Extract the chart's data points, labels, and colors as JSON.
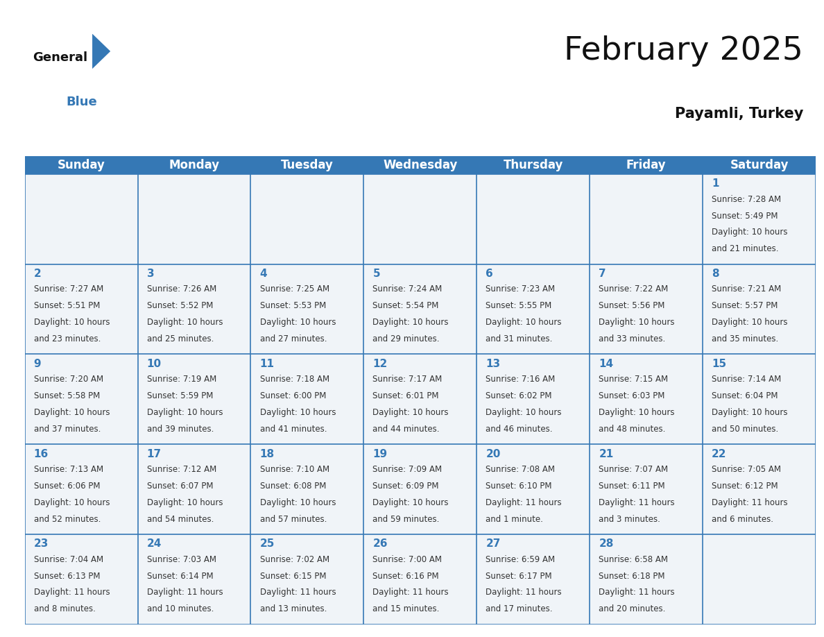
{
  "title": "February 2025",
  "subtitle": "Payamli, Turkey",
  "header_bg": "#3578b5",
  "header_text": "#ffffff",
  "cell_bg": "#f0f4f8",
  "border_color": "#3578b5",
  "day_headers": [
    "Sunday",
    "Monday",
    "Tuesday",
    "Wednesday",
    "Thursday",
    "Friday",
    "Saturday"
  ],
  "days": [
    {
      "day": 1,
      "col": 6,
      "row": 0,
      "sunrise": "7:28 AM",
      "sunset": "5:49 PM",
      "daylight_h": "10 hours",
      "daylight_m": "21 minutes"
    },
    {
      "day": 2,
      "col": 0,
      "row": 1,
      "sunrise": "7:27 AM",
      "sunset": "5:51 PM",
      "daylight_h": "10 hours",
      "daylight_m": "23 minutes"
    },
    {
      "day": 3,
      "col": 1,
      "row": 1,
      "sunrise": "7:26 AM",
      "sunset": "5:52 PM",
      "daylight_h": "10 hours",
      "daylight_m": "25 minutes"
    },
    {
      "day": 4,
      "col": 2,
      "row": 1,
      "sunrise": "7:25 AM",
      "sunset": "5:53 PM",
      "daylight_h": "10 hours",
      "daylight_m": "27 minutes"
    },
    {
      "day": 5,
      "col": 3,
      "row": 1,
      "sunrise": "7:24 AM",
      "sunset": "5:54 PM",
      "daylight_h": "10 hours",
      "daylight_m": "29 minutes"
    },
    {
      "day": 6,
      "col": 4,
      "row": 1,
      "sunrise": "7:23 AM",
      "sunset": "5:55 PM",
      "daylight_h": "10 hours",
      "daylight_m": "31 minutes"
    },
    {
      "day": 7,
      "col": 5,
      "row": 1,
      "sunrise": "7:22 AM",
      "sunset": "5:56 PM",
      "daylight_h": "10 hours",
      "daylight_m": "33 minutes"
    },
    {
      "day": 8,
      "col": 6,
      "row": 1,
      "sunrise": "7:21 AM",
      "sunset": "5:57 PM",
      "daylight_h": "10 hours",
      "daylight_m": "35 minutes"
    },
    {
      "day": 9,
      "col": 0,
      "row": 2,
      "sunrise": "7:20 AM",
      "sunset": "5:58 PM",
      "daylight_h": "10 hours",
      "daylight_m": "37 minutes"
    },
    {
      "day": 10,
      "col": 1,
      "row": 2,
      "sunrise": "7:19 AM",
      "sunset": "5:59 PM",
      "daylight_h": "10 hours",
      "daylight_m": "39 minutes"
    },
    {
      "day": 11,
      "col": 2,
      "row": 2,
      "sunrise": "7:18 AM",
      "sunset": "6:00 PM",
      "daylight_h": "10 hours",
      "daylight_m": "41 minutes"
    },
    {
      "day": 12,
      "col": 3,
      "row": 2,
      "sunrise": "7:17 AM",
      "sunset": "6:01 PM",
      "daylight_h": "10 hours",
      "daylight_m": "44 minutes"
    },
    {
      "day": 13,
      "col": 4,
      "row": 2,
      "sunrise": "7:16 AM",
      "sunset": "6:02 PM",
      "daylight_h": "10 hours",
      "daylight_m": "46 minutes"
    },
    {
      "day": 14,
      "col": 5,
      "row": 2,
      "sunrise": "7:15 AM",
      "sunset": "6:03 PM",
      "daylight_h": "10 hours",
      "daylight_m": "48 minutes"
    },
    {
      "day": 15,
      "col": 6,
      "row": 2,
      "sunrise": "7:14 AM",
      "sunset": "6:04 PM",
      "daylight_h": "10 hours",
      "daylight_m": "50 minutes"
    },
    {
      "day": 16,
      "col": 0,
      "row": 3,
      "sunrise": "7:13 AM",
      "sunset": "6:06 PM",
      "daylight_h": "10 hours",
      "daylight_m": "52 minutes"
    },
    {
      "day": 17,
      "col": 1,
      "row": 3,
      "sunrise": "7:12 AM",
      "sunset": "6:07 PM",
      "daylight_h": "10 hours",
      "daylight_m": "54 minutes"
    },
    {
      "day": 18,
      "col": 2,
      "row": 3,
      "sunrise": "7:10 AM",
      "sunset": "6:08 PM",
      "daylight_h": "10 hours",
      "daylight_m": "57 minutes"
    },
    {
      "day": 19,
      "col": 3,
      "row": 3,
      "sunrise": "7:09 AM",
      "sunset": "6:09 PM",
      "daylight_h": "10 hours",
      "daylight_m": "59 minutes"
    },
    {
      "day": 20,
      "col": 4,
      "row": 3,
      "sunrise": "7:08 AM",
      "sunset": "6:10 PM",
      "daylight_h": "11 hours",
      "daylight_m": "1 minute"
    },
    {
      "day": 21,
      "col": 5,
      "row": 3,
      "sunrise": "7:07 AM",
      "sunset": "6:11 PM",
      "daylight_h": "11 hours",
      "daylight_m": "3 minutes"
    },
    {
      "day": 22,
      "col": 6,
      "row": 3,
      "sunrise": "7:05 AM",
      "sunset": "6:12 PM",
      "daylight_h": "11 hours",
      "daylight_m": "6 minutes"
    },
    {
      "day": 23,
      "col": 0,
      "row": 4,
      "sunrise": "7:04 AM",
      "sunset": "6:13 PM",
      "daylight_h": "11 hours",
      "daylight_m": "8 minutes"
    },
    {
      "day": 24,
      "col": 1,
      "row": 4,
      "sunrise": "7:03 AM",
      "sunset": "6:14 PM",
      "daylight_h": "11 hours",
      "daylight_m": "10 minutes"
    },
    {
      "day": 25,
      "col": 2,
      "row": 4,
      "sunrise": "7:02 AM",
      "sunset": "6:15 PM",
      "daylight_h": "11 hours",
      "daylight_m": "13 minutes"
    },
    {
      "day": 26,
      "col": 3,
      "row": 4,
      "sunrise": "7:00 AM",
      "sunset": "6:16 PM",
      "daylight_h": "11 hours",
      "daylight_m": "15 minutes"
    },
    {
      "day": 27,
      "col": 4,
      "row": 4,
      "sunrise": "6:59 AM",
      "sunset": "6:17 PM",
      "daylight_h": "11 hours",
      "daylight_m": "17 minutes"
    },
    {
      "day": 28,
      "col": 5,
      "row": 4,
      "sunrise": "6:58 AM",
      "sunset": "6:18 PM",
      "daylight_h": "11 hours",
      "daylight_m": "20 minutes"
    }
  ],
  "n_rows": 5,
  "n_cols": 7,
  "logo_color_general": "#111111",
  "logo_color_blue": "#3578b5",
  "title_color": "#111111",
  "subtitle_color": "#111111",
  "day_num_color": "#3578b5",
  "cell_text_color": "#333333",
  "title_fontsize": 34,
  "subtitle_fontsize": 15,
  "header_fontsize": 12,
  "day_num_fontsize": 11,
  "cell_text_fontsize": 8.5
}
